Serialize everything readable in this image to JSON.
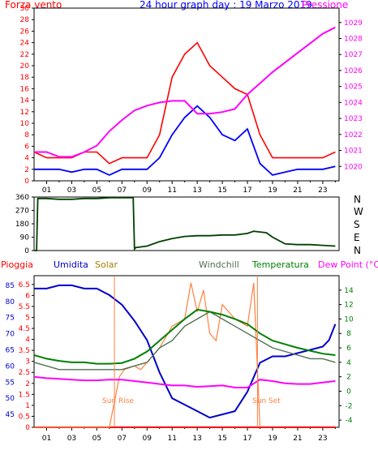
{
  "header": {
    "left": "Forza vento",
    "title": "24 hour graph day : 19 Marzo 2019",
    "right": "Pressione"
  },
  "middle": {
    "compass": [
      "N",
      "W",
      "S",
      "E",
      "N"
    ]
  },
  "bottom_legend": {
    "pioggia": "Pioggia",
    "umidita": "Umidita",
    "solar": "Solar",
    "windchill": "Windchill",
    "temperatura": "Temperatura",
    "dewpoint": "Dew Point (°C)"
  },
  "annotations": {
    "sunrise": "Sun Rise",
    "sunset": "Sun Set"
  },
  "colors": {
    "wind_gust": "#ff0000",
    "wind_avg": "#0000ff",
    "pressure": "#ff00ff",
    "direction": "#004000",
    "rain": "#ff0000",
    "humidity": "#0000cc",
    "solar": "#ff8040",
    "windchill": "#507050",
    "temperature": "#008000",
    "dewpoint": "#ff00ff"
  },
  "chart_data": [
    {
      "type": "line",
      "title": "24 hour graph day : 19 Marzo 2019",
      "x_ticks": [
        "01",
        "03",
        "05",
        "07",
        "09",
        "11",
        "13",
        "15",
        "17",
        "19",
        "21",
        "23"
      ],
      "xlim": [
        0,
        24.3
      ],
      "y_left_ticks": [
        0,
        2,
        4,
        6,
        8,
        10,
        12,
        14,
        16,
        18,
        20,
        22,
        24,
        26,
        28,
        30
      ],
      "ylim_left": [
        0,
        30
      ],
      "y_right_ticks": [
        1020,
        1021,
        1022,
        1023,
        1024,
        1025,
        1026,
        1027,
        1028,
        1029
      ],
      "ylim_right": [
        1019.1,
        1029.9
      ],
      "series": [
        {
          "name": "Forza vento",
          "axis": "left",
          "x": [
            0,
            1,
            2,
            3,
            4,
            5,
            6,
            7,
            8,
            9,
            10,
            11,
            12,
            13,
            14,
            15,
            16,
            17,
            18,
            19,
            20,
            21,
            22,
            23,
            24
          ],
          "values": [
            5,
            4,
            4,
            4,
            5,
            5,
            3,
            4,
            4,
            4,
            8,
            18,
            22,
            24,
            20,
            18,
            16,
            15,
            8,
            4,
            4,
            4,
            4,
            4,
            5
          ]
        },
        {
          "axis": "left",
          "x": [
            0,
            1,
            2,
            3,
            4,
            5,
            6,
            7,
            8,
            9,
            10,
            11,
            12,
            13,
            14,
            15,
            16,
            17,
            18,
            19,
            20,
            21,
            22,
            23,
            24
          ],
          "values": [
            2,
            2,
            2,
            1.5,
            2,
            2,
            1,
            2,
            2,
            2,
            4,
            8,
            11,
            13,
            11,
            8,
            7,
            9,
            3,
            1,
            1.5,
            2,
            2,
            2,
            2.5
          ]
        },
        {
          "name": "Pressione",
          "axis": "right",
          "x": [
            0,
            1,
            2,
            3,
            4,
            5,
            6,
            7,
            8,
            9,
            10,
            11,
            12,
            13,
            14,
            15,
            16,
            17,
            18,
            19,
            20,
            21,
            22,
            23,
            24
          ],
          "values": [
            1020.9,
            1020.9,
            1020.6,
            1020.6,
            1020.9,
            1021.3,
            1022.2,
            1022.9,
            1023.5,
            1023.8,
            1024.0,
            1024.1,
            1024.1,
            1023.3,
            1023.3,
            1023.4,
            1023.6,
            1024.5,
            1025.2,
            1025.9,
            1026.5,
            1027.1,
            1027.7,
            1028.3,
            1028.7
          ]
        }
      ]
    },
    {
      "type": "line",
      "x_ticks": [
        "01",
        "03",
        "05",
        "07",
        "09",
        "11",
        "13",
        "15",
        "17",
        "19",
        "21",
        "23"
      ],
      "xlim": [
        0,
        24.3
      ],
      "y_ticks": [
        0,
        90,
        180,
        270,
        360
      ],
      "ylim": [
        0,
        360
      ],
      "series": [
        {
          "x": [
            0,
            0.2,
            0.3,
            1,
            2,
            3,
            4,
            5,
            6,
            7,
            7.9,
            8,
            8.1,
            9,
            10,
            11,
            12,
            13,
            14,
            15,
            16,
            17,
            17.5,
            18,
            18.5,
            19,
            20,
            21,
            22,
            23,
            24
          ],
          "values": [
            0,
            0,
            350,
            350,
            345,
            345,
            350,
            350,
            355,
            355,
            355,
            10,
            20,
            30,
            60,
            80,
            95,
            100,
            100,
            105,
            105,
            115,
            130,
            125,
            120,
            90,
            45,
            40,
            40,
            35,
            30
          ]
        }
      ]
    },
    {
      "type": "line",
      "x_ticks": [
        "01",
        "03",
        "05",
        "07",
        "09",
        "11",
        "13",
        "15",
        "17",
        "19",
        "21",
        "23"
      ],
      "xlim": [
        0,
        24.3
      ],
      "y_umidita_ticks": [
        45,
        50,
        55,
        60,
        65,
        70,
        75,
        80,
        85
      ],
      "ylim_umidita": [
        41,
        88
      ],
      "y_pioggia_ticks": [
        0,
        0.5,
        1,
        1.5,
        2,
        2.5,
        3,
        3.5,
        4,
        4.5,
        5,
        5.5,
        6,
        6.5
      ],
      "ylim_pioggia": [
        0,
        6.9
      ],
      "y_temp_ticks": [
        -4,
        -2,
        0,
        2,
        4,
        6,
        8,
        10,
        12,
        14
      ],
      "ylim_temp": [
        -5,
        16
      ],
      "series": [
        {
          "name": "Pioggia",
          "axis": "pioggia",
          "x": [
            0,
            24
          ],
          "values": [
            0,
            0
          ]
        },
        {
          "name": "Umidita",
          "axis": "umidita",
          "x": [
            0,
            1,
            2,
            3,
            4,
            5,
            6,
            7,
            8,
            9,
            10,
            11,
            12,
            13,
            14,
            15,
            16,
            17,
            18,
            19,
            20,
            21,
            22,
            23,
            23.5,
            24
          ],
          "values": [
            84,
            84,
            85,
            85,
            84,
            84,
            82,
            79,
            74,
            68,
            58,
            50,
            48,
            46,
            44,
            45,
            46,
            52,
            61,
            63,
            63,
            64,
            65,
            66,
            68,
            73
          ]
        },
        {
          "name": "Solar",
          "axis": "temp",
          "x": [
            0,
            6,
            6.8,
            7.2,
            8,
            8.5,
            9,
            10,
            11,
            12,
            12.5,
            13,
            13.5,
            14,
            14.5,
            15,
            16,
            17,
            17.5,
            17.8,
            18
          ],
          "values": [
            -5,
            -5,
            2,
            3,
            3.5,
            3,
            4,
            6,
            9,
            10,
            15,
            11,
            14,
            8,
            7,
            12,
            10,
            9,
            15,
            3,
            -5
          ]
        },
        {
          "name": "Windchill",
          "axis": "temp",
          "x": [
            0,
            1,
            2,
            3,
            4,
            5,
            6,
            7,
            8,
            9,
            10,
            11,
            12,
            13,
            14,
            15,
            16,
            17,
            18,
            19,
            20,
            21,
            22,
            23,
            24
          ],
          "values": [
            4,
            3.5,
            3,
            3,
            3,
            3,
            3,
            3,
            3.5,
            4,
            6,
            7,
            9,
            10,
            11,
            10,
            9,
            8,
            7,
            6,
            5.5,
            5,
            4.5,
            4.5,
            4
          ]
        },
        {
          "name": "Temperatura",
          "axis": "temp",
          "x": [
            0,
            1,
            2,
            3,
            4,
            5,
            6,
            7,
            8,
            9,
            10,
            11,
            12,
            13,
            14,
            15,
            16,
            17,
            18,
            19,
            20,
            21,
            22,
            23,
            24
          ],
          "values": [
            5,
            4.5,
            4.2,
            4,
            4,
            3.8,
            3.8,
            3.9,
            4.5,
            5.5,
            7,
            8.5,
            10,
            11.3,
            11,
            10.6,
            10,
            9.3,
            8,
            7,
            6.5,
            6,
            5.6,
            5.2,
            5
          ]
        },
        {
          "name": "Dew Point (°C)",
          "axis": "temp",
          "x": [
            0,
            1,
            2,
            3,
            4,
            5,
            6,
            7,
            8,
            9,
            10,
            11,
            12,
            13,
            14,
            15,
            16,
            17,
            18,
            19,
            20,
            21,
            22,
            23,
            24
          ],
          "values": [
            2,
            1.8,
            1.7,
            1.6,
            1.5,
            1.5,
            1.6,
            1.6,
            1.4,
            1.2,
            1,
            0.8,
            0.8,
            0.6,
            0.7,
            0.8,
            0.5,
            0.5,
            1.6,
            1.4,
            1.1,
            1,
            1,
            1.2,
            1.4
          ]
        }
      ]
    }
  ]
}
